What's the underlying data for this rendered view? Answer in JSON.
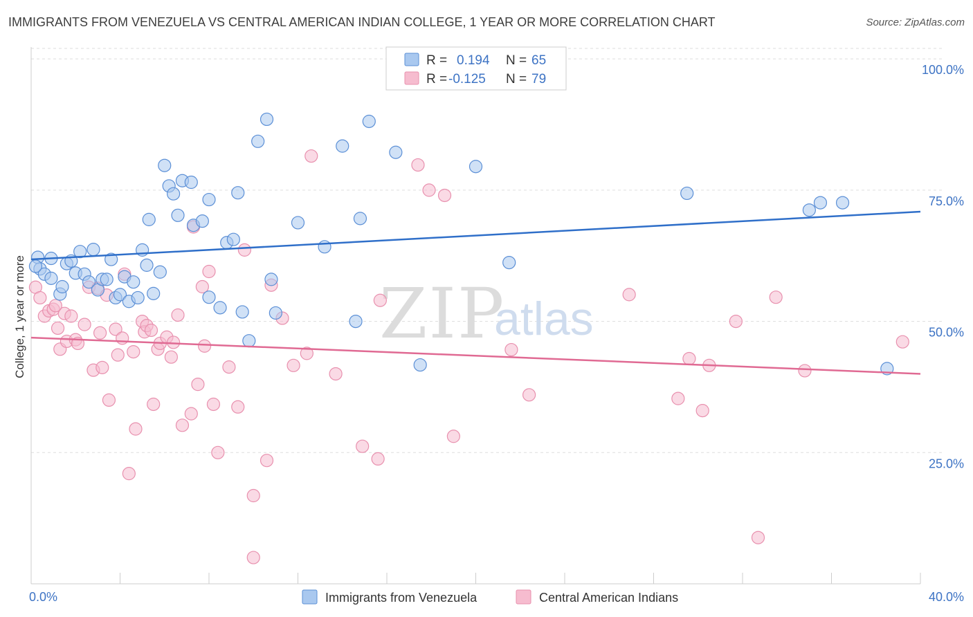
{
  "header": {
    "title": "IMMIGRANTS FROM VENEZUELA VS CENTRAL AMERICAN INDIAN COLLEGE, 1 YEAR OR MORE CORRELATION CHART",
    "source": "Source: ZipAtlas.com"
  },
  "watermark": {
    "zip": "ZIP",
    "atlas": "atlas"
  },
  "colors": {
    "blue_fill": "#a9c8ef",
    "blue_stroke": "#5b8fd6",
    "blue_line": "#2f6fc9",
    "pink_fill": "#f6bccf",
    "pink_stroke": "#e890ae",
    "pink_line": "#e06a93",
    "axis_label": "#3d73c4",
    "grid": "#dddddd"
  },
  "legend": {
    "r_label": "R =",
    "n_label": "N =",
    "rows": [
      {
        "r": "0.194",
        "n": "65"
      },
      {
        "r": "-0.125",
        "n": "79"
      }
    ]
  },
  "chart_data": {
    "type": "scatter",
    "title": "IMMIGRANTS FROM VENEZUELA VS CENTRAL AMERICAN INDIAN COLLEGE, 1 YEAR OR MORE CORRELATION CHART",
    "xlabel": "",
    "ylabel": "College, 1 year or more",
    "xlim": [
      0,
      40
    ],
    "ylim": [
      0,
      102
    ],
    "x_tick_labels": [
      "0.0%",
      "40.0%"
    ],
    "y_ticks": [
      25,
      50,
      75,
      100
    ],
    "y_tick_labels": [
      "25.0%",
      "50.0%",
      "75.0%",
      "100.0%"
    ],
    "grid": true,
    "legend_placement": "top-center",
    "series": [
      {
        "name": "Immigrants from Venezuela",
        "color": "#a9c8ef",
        "r": 0.194,
        "n": 65,
        "trend": {
          "x": [
            0,
            40
          ],
          "y": [
            61.8,
            70.9
          ]
        },
        "points": [
          [
            0.3,
            62.2
          ],
          [
            0.4,
            60.0
          ],
          [
            0.6,
            59.0
          ],
          [
            0.9,
            62.0
          ],
          [
            0.9,
            58.2
          ],
          [
            1.3,
            55.2
          ],
          [
            1.4,
            56.6
          ],
          [
            1.6,
            61.0
          ],
          [
            1.8,
            61.5
          ],
          [
            2.0,
            59.2
          ],
          [
            2.2,
            63.3
          ],
          [
            2.4,
            59.0
          ],
          [
            2.6,
            57.5
          ],
          [
            2.8,
            63.7
          ],
          [
            3.0,
            56.0
          ],
          [
            3.2,
            58.0
          ],
          [
            3.4,
            58.0
          ],
          [
            3.6,
            61.8
          ],
          [
            3.8,
            54.5
          ],
          [
            4.0,
            55.1
          ],
          [
            4.2,
            58.5
          ],
          [
            4.4,
            53.8
          ],
          [
            4.6,
            57.5
          ],
          [
            4.8,
            54.5
          ],
          [
            5.0,
            63.6
          ],
          [
            5.2,
            60.7
          ],
          [
            5.3,
            69.4
          ],
          [
            5.5,
            55.3
          ],
          [
            5.8,
            59.4
          ],
          [
            6.0,
            79.7
          ],
          [
            6.2,
            75.8
          ],
          [
            6.4,
            74.3
          ],
          [
            6.6,
            70.2
          ],
          [
            6.8,
            76.8
          ],
          [
            7.2,
            76.5
          ],
          [
            7.3,
            68.3
          ],
          [
            7.7,
            69.1
          ],
          [
            8.0,
            73.2
          ],
          [
            8.0,
            54.6
          ],
          [
            8.5,
            52.6
          ],
          [
            8.8,
            65.0
          ],
          [
            9.1,
            65.6
          ],
          [
            9.3,
            74.5
          ],
          [
            9.5,
            51.8
          ],
          [
            9.8,
            46.3
          ],
          [
            10.2,
            84.3
          ],
          [
            10.6,
            88.5
          ],
          [
            10.8,
            58.0
          ],
          [
            11.0,
            51.6
          ],
          [
            12.0,
            68.8
          ],
          [
            13.2,
            64.2
          ],
          [
            14.0,
            83.4
          ],
          [
            14.6,
            50.0
          ],
          [
            14.8,
            69.6
          ],
          [
            15.2,
            88.1
          ],
          [
            16.4,
            82.2
          ],
          [
            17.5,
            41.7
          ],
          [
            20.0,
            79.5
          ],
          [
            21.5,
            61.2
          ],
          [
            29.5,
            74.4
          ],
          [
            35.0,
            71.2
          ],
          [
            35.5,
            72.6
          ],
          [
            36.5,
            72.6
          ],
          [
            38.5,
            41.0
          ],
          [
            0.2,
            60.5
          ]
        ]
      },
      {
        "name": "Central American Indians",
        "color": "#f6bccf",
        "r": -0.125,
        "n": 79,
        "trend": {
          "x": [
            0,
            40
          ],
          "y": [
            46.9,
            40.0
          ]
        },
        "points": [
          [
            0.2,
            56.5
          ],
          [
            0.4,
            54.5
          ],
          [
            0.6,
            51.0
          ],
          [
            0.8,
            52.0
          ],
          [
            1.0,
            52.3
          ],
          [
            1.2,
            48.7
          ],
          [
            1.3,
            44.7
          ],
          [
            1.5,
            51.5
          ],
          [
            1.6,
            46.2
          ],
          [
            1.8,
            51.0
          ],
          [
            2.0,
            46.5
          ],
          [
            2.1,
            45.8
          ],
          [
            2.4,
            49.4
          ],
          [
            2.6,
            56.5
          ],
          [
            2.8,
            40.7
          ],
          [
            3.0,
            56.3
          ],
          [
            3.2,
            41.2
          ],
          [
            3.4,
            55.0
          ],
          [
            3.5,
            35.0
          ],
          [
            3.8,
            48.5
          ],
          [
            3.9,
            43.6
          ],
          [
            4.1,
            46.8
          ],
          [
            4.2,
            59.0
          ],
          [
            4.4,
            21.0
          ],
          [
            4.6,
            44.2
          ],
          [
            4.7,
            29.5
          ],
          [
            5.0,
            50.0
          ],
          [
            5.1,
            48.0
          ],
          [
            5.2,
            49.2
          ],
          [
            5.4,
            48.3
          ],
          [
            5.5,
            34.2
          ],
          [
            5.7,
            44.7
          ],
          [
            5.8,
            45.8
          ],
          [
            6.1,
            47.0
          ],
          [
            6.3,
            43.2
          ],
          [
            6.4,
            46.0
          ],
          [
            6.6,
            51.2
          ],
          [
            6.8,
            30.2
          ],
          [
            7.2,
            32.4
          ],
          [
            7.3,
            68.0
          ],
          [
            7.5,
            38.0
          ],
          [
            7.7,
            56.6
          ],
          [
            7.8,
            45.3
          ],
          [
            8.0,
            59.5
          ],
          [
            8.2,
            34.2
          ],
          [
            8.4,
            25.0
          ],
          [
            8.9,
            41.3
          ],
          [
            9.3,
            33.7
          ],
          [
            9.6,
            63.6
          ],
          [
            10.0,
            16.8
          ],
          [
            10.0,
            5.0
          ],
          [
            10.6,
            23.5
          ],
          [
            10.8,
            56.9
          ],
          [
            11.3,
            50.6
          ],
          [
            11.8,
            41.6
          ],
          [
            12.4,
            43.9
          ],
          [
            12.6,
            81.5
          ],
          [
            13.7,
            40.0
          ],
          [
            14.9,
            26.2
          ],
          [
            15.6,
            23.8
          ],
          [
            15.7,
            54.0
          ],
          [
            17.4,
            79.8
          ],
          [
            17.9,
            75.0
          ],
          [
            18.6,
            74.0
          ],
          [
            19.0,
            28.1
          ],
          [
            21.6,
            44.6
          ],
          [
            22.4,
            36.0
          ],
          [
            26.9,
            55.1
          ],
          [
            29.1,
            35.3
          ],
          [
            29.6,
            42.9
          ],
          [
            30.2,
            33.0
          ],
          [
            30.5,
            41.6
          ],
          [
            31.7,
            50.0
          ],
          [
            32.7,
            8.8
          ],
          [
            33.5,
            54.6
          ],
          [
            34.8,
            40.6
          ],
          [
            39.2,
            46.1
          ],
          [
            1.1,
            53.0
          ],
          [
            3.1,
            47.8
          ]
        ]
      }
    ]
  },
  "bottom_legend": {
    "items": [
      {
        "label": "Immigrants from Venezuela"
      },
      {
        "label": "Central American Indians"
      }
    ]
  }
}
